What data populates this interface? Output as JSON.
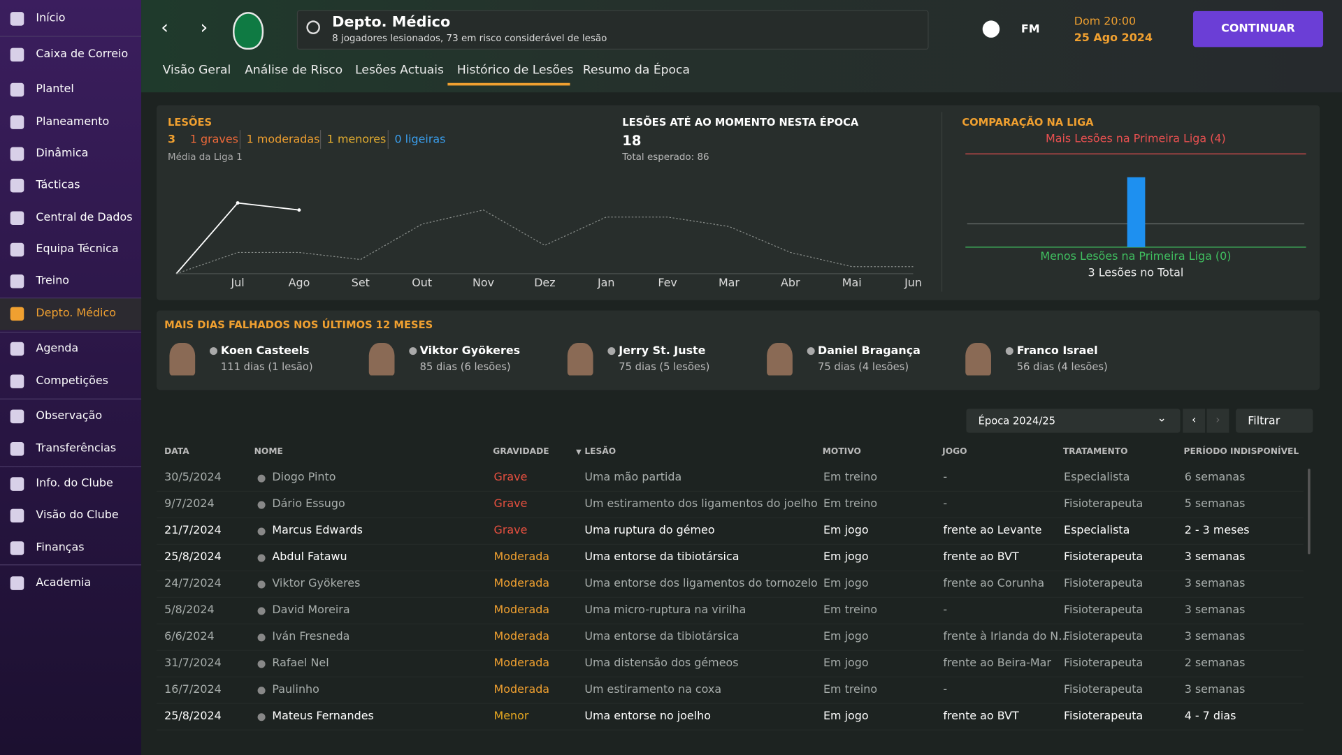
{
  "sidebar": {
    "items": [
      "Início",
      "Caixa de Correio",
      "Plantel",
      "Planeamento",
      "Dinâmica",
      "Tácticas",
      "Central de Dados",
      "Equipa Técnica",
      "Treino",
      "Depto. Médico",
      "Agenda",
      "Competições",
      "Observação",
      "Transferências",
      "Info. do Clube",
      "Visão do Clube",
      "Finanças",
      "Academia"
    ],
    "active": 9
  },
  "header": {
    "title": "Depto. Médico",
    "subtitle": "8 jogadores lesionados, 73 em risco considerável de lesão",
    "fm": "FM",
    "day_time": "Dom 20:00",
    "date": "25 Ago 2024",
    "button": "CONTINUAR"
  },
  "tabs": {
    "items": [
      "Visão Geral",
      "Análise de Risco",
      "Lesões Actuais",
      "Histórico de Lesões",
      "Resumo da Época"
    ],
    "active": 3
  },
  "injuries": {
    "title": "LESÕES",
    "total": "3",
    "breakdown": [
      "1 graves",
      "1 moderadas",
      "1 menores",
      "0 ligeiras"
    ],
    "league_label": "Média da Liga 1",
    "season_title": "LESÕES ATÉ AO MOMENTO NESTA ÉPOCA",
    "season_total": "18",
    "expected": "Total esperado: 86"
  },
  "chart_data": [
    {
      "type": "line",
      "categories": [
        null,
        "Jul",
        "Ago",
        "Set",
        "Out",
        "Nov",
        "Dez",
        "Jan",
        "Fev",
        "Mar",
        "Abr",
        "Mai",
        "Jun"
      ],
      "ylim": [
        0,
        4
      ],
      "series": [
        {
          "color": "#ffffff",
          "dash": false,
          "values": [
            0,
            3,
            2.7,
            null,
            null,
            null,
            null,
            null,
            null,
            null,
            null,
            null,
            null
          ]
        },
        {
          "color": "#8a8f8c",
          "dash": true,
          "values": [
            0,
            0.9,
            0.9,
            0.6,
            2.1,
            2.7,
            1.2,
            2.4,
            2.4,
            2.0,
            0.9,
            0.3,
            0.3
          ]
        }
      ]
    },
    {
      "type": "bar",
      "title": "COMPARAÇÃO NA LIGA",
      "values": [
        3
      ],
      "average": 1,
      "ylim": [
        0,
        4
      ],
      "color": "#1e90f0",
      "top_label": "Mais Lesões na Primeira Liga (4)",
      "bottom_label": "Menos Lesões na Primeira Liga (0)",
      "total_label": "3 Lesões no Total"
    }
  ],
  "most_days": {
    "title": "MAIS DIAS FALHADOS NOS ÚLTIMOS 12 MESES",
    "players": [
      {
        "name": "Koen Casteels",
        "detail": "111 dias (1 lesão)"
      },
      {
        "name": "Viktor Gyökeres",
        "detail": "85 dias (6 lesões)"
      },
      {
        "name": "Jerry St. Juste",
        "detail": "75 dias (5 lesões)"
      },
      {
        "name": "Daniel Bragança",
        "detail": "75 dias (4 lesões)"
      },
      {
        "name": "Franco Israel",
        "detail": "56 dias (4 lesões)"
      }
    ]
  },
  "controls": {
    "season": "Época 2024/25",
    "filter": "Filtrar"
  },
  "table": {
    "columns": [
      "DATA",
      "NOME",
      "GRAVIDADE",
      "LESÃO",
      "MOTIVO",
      "JOGO",
      "TRATAMENTO",
      "PERÍODO INDISPONÍVEL"
    ],
    "rows": [
      [
        "30/5/2024",
        "Diogo Pinto",
        "Grave",
        "Uma mão partida",
        "Em treino",
        "-",
        "Especialista",
        "6 semanas"
      ],
      [
        "9/7/2024",
        "Dário Essugo",
        "Grave",
        "Um estiramento dos ligamentos do joelho",
        "Em treino",
        "-",
        "Fisioterapeuta",
        "5 semanas"
      ],
      [
        "21/7/2024",
        "Marcus Edwards",
        "Grave",
        "Uma ruptura do gémeo",
        "Em jogo",
        "frente ao Levante",
        "Especialista",
        "2 - 3 meses"
      ],
      [
        "25/8/2024",
        "Abdul Fatawu",
        "Moderada",
        "Uma entorse da tibiotársica",
        "Em jogo",
        "frente ao BVT",
        "Fisioterapeuta",
        "3 semanas"
      ],
      [
        "24/7/2024",
        "Viktor Gyökeres",
        "Moderada",
        "Uma entorse dos ligamentos do tornozelo",
        "Em jogo",
        "frente ao Corunha",
        "Fisioterapeuta",
        "3 semanas"
      ],
      [
        "5/8/2024",
        "David Moreira",
        "Moderada",
        "Uma micro-ruptura na virilha",
        "Em treino",
        "-",
        "Fisioterapeuta",
        "3 semanas"
      ],
      [
        "6/6/2024",
        "Iván Fresneda",
        "Moderada",
        "Uma entorse da tibiotársica",
        "Em jogo",
        "frente à Irlanda do N…",
        "Fisioterapeuta",
        "3 semanas"
      ],
      [
        "31/7/2024",
        "Rafael Nel",
        "Moderada",
        "Uma distensão dos gémeos",
        "Em jogo",
        "frente ao Beira-Mar",
        "Fisioterapeuta",
        "2 semanas"
      ],
      [
        "16/7/2024",
        "Paulinho",
        "Moderada",
        "Um estiramento na coxa",
        "Em treino",
        "-",
        "Fisioterapeuta",
        "3 semanas"
      ],
      [
        "25/8/2024",
        "Mateus Fernandes",
        "Menor",
        "Uma entorse no joelho",
        "Em jogo",
        "frente ao BVT",
        "Fisioterapeuta",
        "4 - 7 dias"
      ]
    ],
    "highlighted": [
      false,
      false,
      true,
      true,
      false,
      false,
      false,
      false,
      false,
      true
    ]
  }
}
